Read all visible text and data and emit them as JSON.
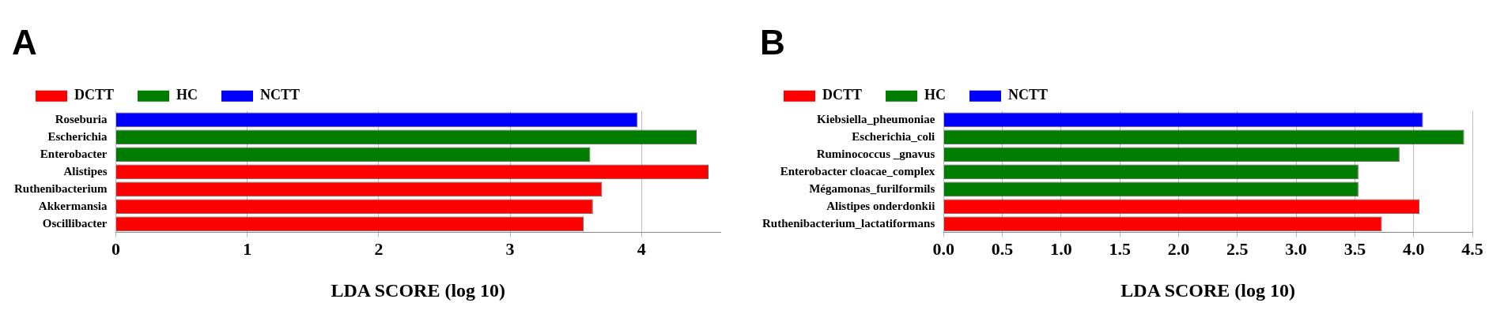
{
  "chart_data": [
    {
      "type": "bar",
      "title": "A",
      "orientation": "horizontal",
      "xlabel": "LDA SCORE (log 10)",
      "categories": [
        "Roseburia",
        "Escherichia",
        "Enterobacter",
        "Alistipes",
        "Ruthenibacterium",
        "Akkermansia",
        "Oscillibacter"
      ],
      "series": [
        {
          "name": "DCTT",
          "color": "#ff0000",
          "values": [
            null,
            null,
            null,
            4.51,
            3.7,
            3.63,
            3.56
          ]
        },
        {
          "name": "HC",
          "color": "#007d00",
          "values": [
            null,
            4.42,
            3.61,
            null,
            null,
            null,
            null
          ]
        },
        {
          "name": "NCTT",
          "color": "#0000ff",
          "values": [
            3.97,
            null,
            null,
            null,
            null,
            null,
            null
          ]
        }
      ],
      "xlim": [
        0,
        4.6
      ],
      "xticks": [
        0,
        1,
        2,
        3,
        4
      ],
      "grid": "x",
      "legend": "top left"
    },
    {
      "type": "bar",
      "title": "B",
      "orientation": "horizontal",
      "xlabel": "LDA SCORE (log 10)",
      "categories": [
        "Kiebsiella_pheumoniae",
        "Escherichia_coli",
        "Ruminococcus _gnavus",
        "Enterobacter cloacae_complex",
        "Mégamonas_furilformils",
        "Alistipes onderdonkii",
        "Ruthenibacterium_lactatiformans"
      ],
      "series": [
        {
          "name": "DCTT",
          "color": "#ff0000",
          "values": [
            null,
            null,
            null,
            null,
            null,
            4.05,
            3.73
          ]
        },
        {
          "name": "HC",
          "color": "#007d00",
          "values": [
            null,
            4.43,
            3.88,
            3.53,
            3.53,
            null,
            null
          ]
        },
        {
          "name": "NCTT",
          "color": "#0000ff",
          "values": [
            4.08,
            null,
            null,
            null,
            null,
            null,
            null
          ]
        }
      ],
      "xlim": [
        0,
        4.5
      ],
      "xticks": [
        {
          "value": 0,
          "label": "0.0"
        },
        0.5,
        {
          "value": 1,
          "label": "1.0"
        },
        1.5,
        {
          "value": 2,
          "label": "2.0"
        },
        2.5,
        {
          "value": 3,
          "label": "3.0"
        },
        3.5,
        {
          "value": 4,
          "label": "4.0"
        },
        4.5
      ],
      "grid": "x",
      "legend": "top left"
    }
  ]
}
